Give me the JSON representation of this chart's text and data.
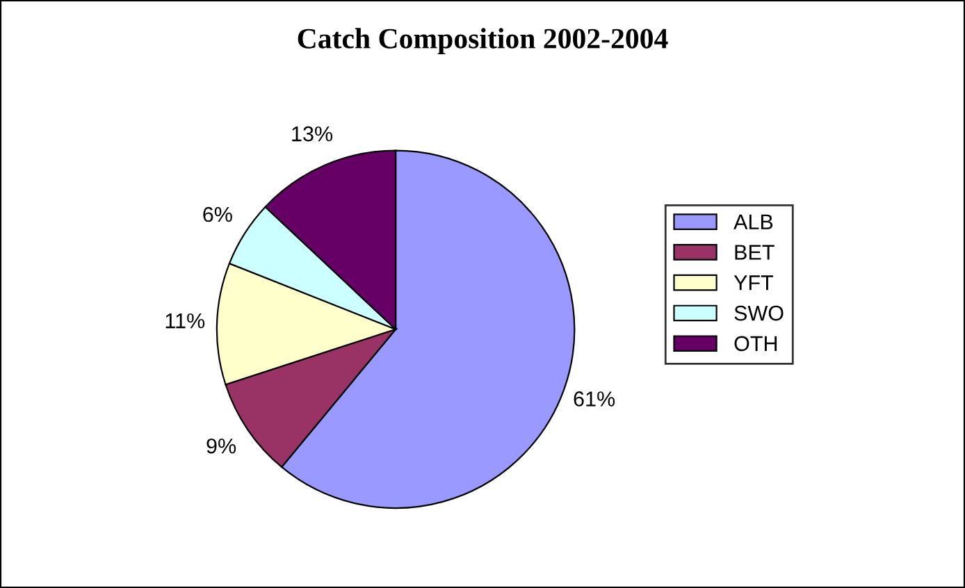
{
  "chart_data": {
    "type": "pie",
    "title": "Catch Composition 2002-2004",
    "categories": [
      "ALB",
      "BET",
      "YFT",
      "SWO",
      "OTH"
    ],
    "values": [
      61,
      9,
      11,
      6,
      13
    ],
    "colors": [
      "#9999ff",
      "#993366",
      "#ffffcc",
      "#ccffff",
      "#660066"
    ],
    "value_labels": [
      "61%",
      "9%",
      "11%",
      "6%",
      "13%"
    ],
    "legend": "right"
  }
}
